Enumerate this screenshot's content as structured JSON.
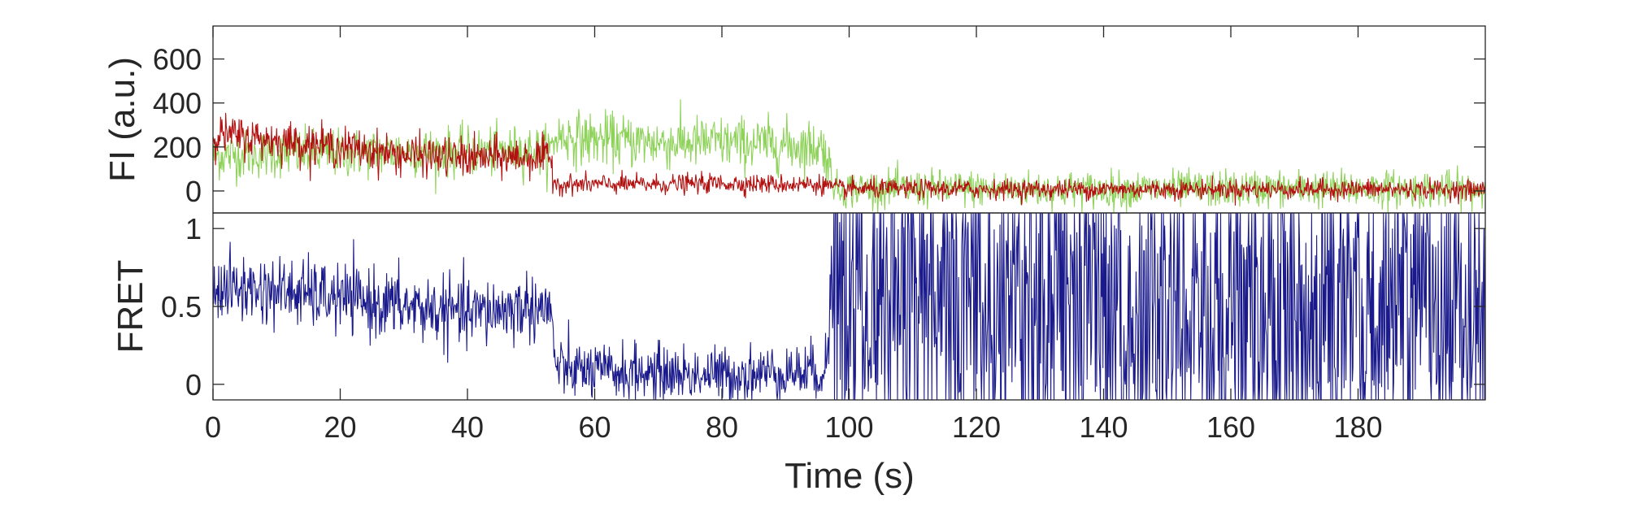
{
  "chart_data": [
    {
      "type": "line",
      "panel": "top",
      "ylabel": "FI (a.u.)",
      "xlim": [
        0,
        200
      ],
      "ylim": [
        -100,
        750
      ],
      "yticks": [
        0,
        200,
        400,
        600
      ],
      "ytick_labels": [
        "0",
        "200",
        "400",
        "600"
      ],
      "grid": false,
      "colors": {
        "donor": "#8ed25a",
        "acceptor": "#b31010"
      },
      "series": [
        {
          "x": [
            0,
            10,
            20,
            30,
            40,
            50,
            53,
            54,
            60,
            70,
            80,
            90,
            96,
            98,
            100,
            120,
            140,
            160,
            180,
            200
          ],
          "values": [
            160,
            170,
            170,
            180,
            175,
            185,
            180,
            250,
            235,
            220,
            220,
            210,
            200,
            0,
            10,
            10,
            5,
            10,
            10,
            5
          ]
        },
        {
          "x": [
            0,
            10,
            20,
            30,
            40,
            50,
            53,
            54,
            60,
            70,
            80,
            90,
            96,
            98,
            100,
            120,
            140,
            160,
            180,
            200
          ],
          "values": [
            260,
            230,
            200,
            165,
            150,
            155,
            145,
            30,
            30,
            30,
            35,
            30,
            30,
            10,
            10,
            8,
            8,
            8,
            8,
            5
          ]
        }
      ]
    },
    {
      "type": "line",
      "panel": "bottom",
      "ylabel": "FRET",
      "xlabel": "Time (s)",
      "xlim": [
        0,
        200
      ],
      "ylim": [
        -0.1,
        1.1
      ],
      "xticks": [
        0,
        20,
        40,
        60,
        80,
        100,
        120,
        140,
        160,
        180
      ],
      "xtick_labels": [
        "0",
        "20",
        "40",
        "60",
        "80",
        "100",
        "120",
        "140",
        "160",
        "180"
      ],
      "yticks": [
        0,
        0.5,
        1
      ],
      "ytick_labels": [
        "0",
        "0.5",
        "1"
      ],
      "grid": false,
      "colors": {
        "fret": "#1a1a8c"
      },
      "series": [
        {
          "x": [
            0,
            10,
            20,
            30,
            40,
            50,
            53,
            54,
            60,
            70,
            80,
            90,
            96,
            98,
            120,
            140,
            160,
            180,
            200
          ],
          "values": [
            0.62,
            0.6,
            0.55,
            0.5,
            0.45,
            0.5,
            0.48,
            0.1,
            0.08,
            0.07,
            0.06,
            0.08,
            0.08,
            0.45,
            0.45,
            0.45,
            0.45,
            0.45,
            0.45
          ]
        }
      ]
    }
  ]
}
